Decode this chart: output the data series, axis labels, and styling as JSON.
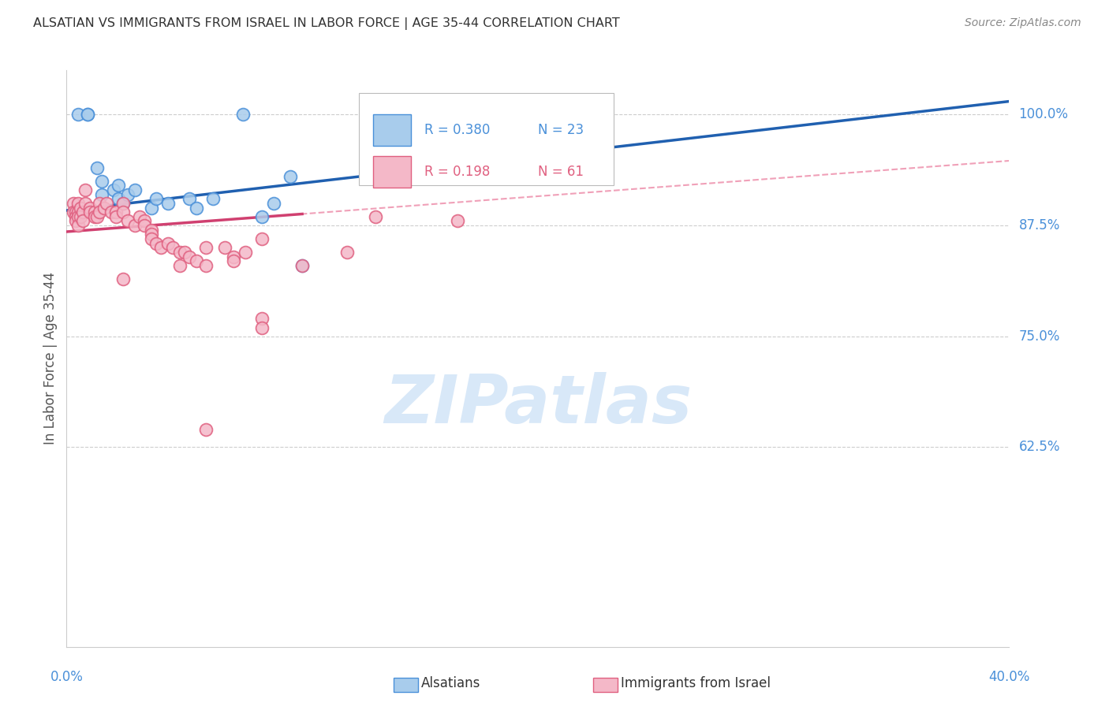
{
  "title": "ALSATIAN VS IMMIGRANTS FROM ISRAEL IN LABOR FORCE | AGE 35-44 CORRELATION CHART",
  "source": "Source: ZipAtlas.com",
  "ylabel": "In Labor Force | Age 35-44",
  "ylabel_ticks": [
    100.0,
    87.5,
    75.0,
    62.5
  ],
  "ylabel_tick_labels": [
    "100.0%",
    "87.5%",
    "75.0%",
    "62.5%"
  ],
  "legend_blue_r": "R = 0.380",
  "legend_blue_n": "N = 23",
  "legend_pink_r": "R = 0.198",
  "legend_pink_n": "N = 61",
  "legend_label_blue": "Alsatians",
  "legend_label_pink": "Immigrants from Israel",
  "blue_fill_color": "#a8ccec",
  "blue_edge_color": "#4a90d9",
  "pink_fill_color": "#f4b8c8",
  "pink_edge_color": "#e06080",
  "blue_line_color": "#2060b0",
  "pink_line_color": "#d04070",
  "blue_dash_color": "#90b8e0",
  "pink_dash_color": "#f0a0b8",
  "watermark_color": "#d8e8f8",
  "background_color": "#ffffff",
  "grid_color": "#c8c8c8",
  "axis_tick_color": "#4a90d9",
  "title_color": "#333333",
  "blue_scatter_x": [
    0.5,
    0.9,
    0.9,
    1.3,
    1.5,
    1.5,
    2.0,
    2.2,
    2.2,
    2.4,
    2.6,
    2.9,
    3.6,
    3.8,
    4.3,
    5.2,
    5.5,
    6.2,
    8.3,
    10.0,
    7.5,
    8.8,
    9.5
  ],
  "blue_scatter_y": [
    100.0,
    100.0,
    100.0,
    94.0,
    92.5,
    91.0,
    91.5,
    92.0,
    90.5,
    90.0,
    91.0,
    91.5,
    89.5,
    90.5,
    90.0,
    90.5,
    89.5,
    90.5,
    88.5,
    83.0,
    100.0,
    90.0,
    93.0
  ],
  "pink_scatter_x": [
    0.3,
    0.3,
    0.4,
    0.4,
    0.4,
    0.5,
    0.5,
    0.5,
    0.5,
    0.6,
    0.6,
    0.7,
    0.7,
    0.8,
    0.8,
    1.0,
    1.0,
    1.2,
    1.2,
    1.3,
    1.4,
    1.4,
    1.6,
    1.7,
    1.9,
    2.1,
    2.1,
    2.4,
    2.4,
    2.6,
    2.9,
    3.1,
    3.3,
    3.3,
    3.6,
    3.6,
    3.6,
    3.8,
    4.0,
    4.3,
    4.5,
    4.8,
    5.0,
    5.2,
    5.5,
    5.9,
    6.7,
    7.1,
    7.6,
    8.3,
    10.0,
    11.9,
    13.1,
    16.6,
    8.3,
    8.3,
    2.4,
    4.8,
    5.9,
    7.1,
    5.9
  ],
  "pink_scatter_y": [
    90.0,
    89.0,
    89.0,
    88.5,
    88.0,
    90.0,
    89.0,
    88.5,
    87.5,
    89.5,
    88.5,
    89.0,
    88.0,
    91.5,
    90.0,
    89.5,
    89.0,
    89.0,
    88.5,
    88.5,
    90.0,
    89.0,
    89.5,
    90.0,
    89.0,
    89.0,
    88.5,
    90.0,
    89.0,
    88.0,
    87.5,
    88.5,
    88.0,
    87.5,
    87.0,
    86.5,
    86.0,
    85.5,
    85.0,
    85.5,
    85.0,
    84.5,
    84.5,
    84.0,
    83.5,
    83.0,
    85.0,
    84.0,
    84.5,
    86.0,
    83.0,
    84.5,
    88.5,
    88.0,
    77.0,
    76.0,
    81.5,
    83.0,
    85.0,
    83.5,
    64.5
  ],
  "xmin": 0.0,
  "xmax": 40.0,
  "ymin": 40.0,
  "ymax": 105.0,
  "blue_trend_x0": 0.0,
  "blue_trend_y0": 89.2,
  "blue_trend_x1": 40.0,
  "blue_trend_y1": 101.5,
  "pink_trend_solid_x0": 0.0,
  "pink_trend_solid_y0": 86.8,
  "pink_trend_solid_x1": 10.0,
  "pink_trend_solid_y1": 88.8,
  "pink_trend_full_x1": 40.0,
  "pink_trend_full_y1": 94.8
}
